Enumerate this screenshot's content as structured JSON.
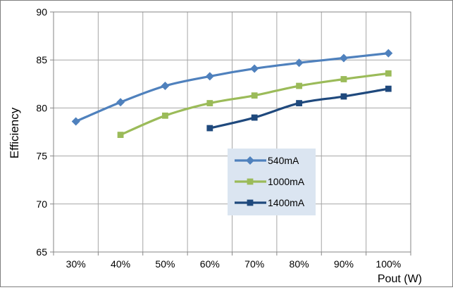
{
  "chart_data": {
    "type": "line",
    "title": "",
    "xlabel": "Pout (W)",
    "ylabel": "Efficiency",
    "x": [
      30,
      40,
      50,
      60,
      70,
      80,
      90,
      100
    ],
    "x_tick_labels": [
      "30%",
      "40%",
      "50%",
      "60%",
      "70%",
      "80%",
      "90%",
      "100%"
    ],
    "y_tick_labels": [
      "65",
      "70",
      "75",
      "80",
      "85",
      "90"
    ],
    "ylim": [
      65,
      90
    ],
    "y_ticks": [
      65,
      70,
      75,
      80,
      85,
      90
    ],
    "grid": true,
    "legend_position": "center-right inside plot",
    "series": [
      {
        "name": "540mA",
        "color": "#4F81BD",
        "marker": "diamond",
        "x": [
          30,
          40,
          50,
          60,
          70,
          80,
          90,
          100
        ],
        "y": [
          78.6,
          80.6,
          82.3,
          83.3,
          84.1,
          84.7,
          85.2,
          85.7
        ]
      },
      {
        "name": "1000mA",
        "color": "#9BBB59",
        "marker": "square",
        "x": [
          40,
          50,
          60,
          70,
          80,
          90,
          100
        ],
        "y": [
          77.2,
          79.2,
          80.5,
          81.3,
          82.3,
          83.0,
          83.6
        ]
      },
      {
        "name": "1400mA",
        "color": "#1F497D",
        "marker": "square",
        "x": [
          60,
          70,
          80,
          90,
          100
        ],
        "y": [
          77.9,
          79.0,
          80.5,
          81.2,
          82.0
        ]
      }
    ]
  }
}
